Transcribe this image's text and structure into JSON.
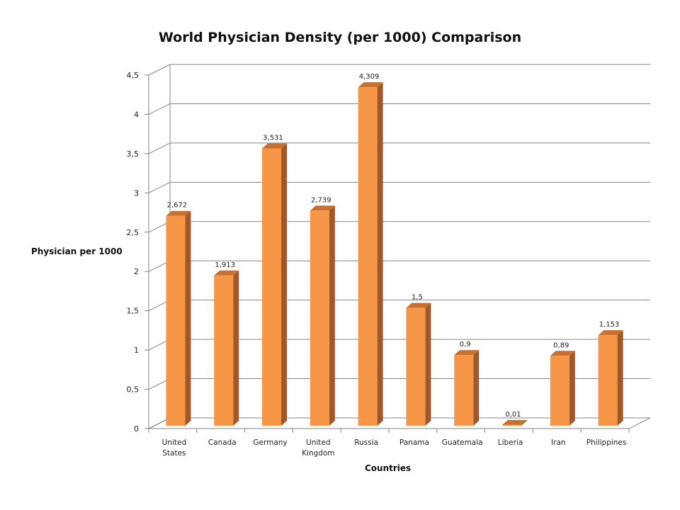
{
  "chart_data": {
    "type": "bar",
    "title": "World Physician Density (per 1000) Comparison",
    "xlabel": "Countries",
    "ylabel": "Physician per 1000",
    "categories": [
      [
        "United",
        "States"
      ],
      [
        "Canada"
      ],
      [
        "Germany"
      ],
      [
        "United",
        "Kingdom"
      ],
      [
        "Russia"
      ],
      [
        "Panama"
      ],
      [
        "Guatemala"
      ],
      [
        "Liberia"
      ],
      [
        "Iran"
      ],
      [
        "Philippines"
      ]
    ],
    "values": [
      2.672,
      1.913,
      3.531,
      2.739,
      4.309,
      1.5,
      0.9,
      0.01,
      0.89,
      1.153
    ],
    "value_labels": [
      "2,672",
      "1,913",
      "3,531",
      "2,739",
      "4,309",
      "1,5",
      "0,9",
      "0,01",
      "0,89",
      "1,153"
    ],
    "ylim": [
      0,
      4.5
    ],
    "yticks": [
      0,
      0.5,
      1,
      1.5,
      2,
      2.5,
      3,
      3.5,
      4,
      4.5
    ],
    "ytick_labels": [
      "0",
      "0,5",
      "1",
      "1,5",
      "2",
      "2,5",
      "3",
      "3,5",
      "4",
      "4,5"
    ],
    "grid": true,
    "style": "3d-column",
    "colors": {
      "bar_front": "#F79646",
      "bar_side": "#A0572A",
      "bar_top": "#C8702F"
    }
  }
}
